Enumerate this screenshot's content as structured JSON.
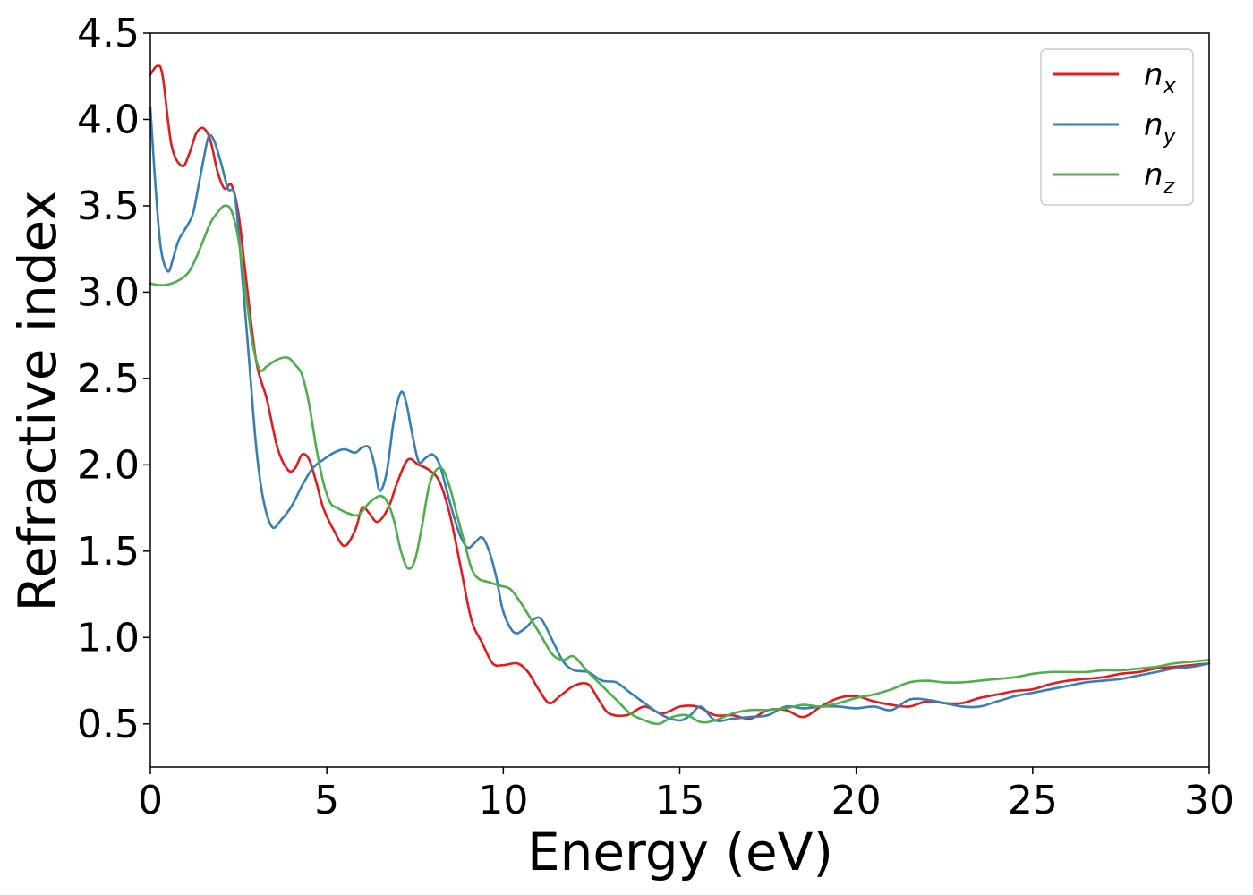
{
  "chart_data": {
    "type": "line",
    "title": "",
    "xlabel": "Energy (eV)",
    "ylabel": "Refractive index",
    "xlim": [
      0,
      30
    ],
    "ylim": [
      0.25,
      4.5
    ],
    "xticks": [
      0,
      5,
      10,
      15,
      20,
      25,
      30
    ],
    "yticks": [
      0.5,
      1.0,
      1.5,
      2.0,
      2.5,
      3.0,
      3.5,
      4.0,
      4.5
    ],
    "xtick_labels": [
      "0",
      "5",
      "10",
      "15",
      "20",
      "25",
      "30"
    ],
    "ytick_labels": [
      "0.5",
      "1.0",
      "1.5",
      "2.0",
      "2.5",
      "3.0",
      "3.5",
      "4.0",
      "4.5"
    ],
    "grid": false,
    "legend_position": "top-right",
    "series": [
      {
        "name": "n",
        "subscript": "x",
        "color": "#e41a1c",
        "x": [
          0,
          0.2,
          0.35,
          0.6,
          0.9,
          1.1,
          1.3,
          1.5,
          1.7,
          1.9,
          2.1,
          2.3,
          2.5,
          2.7,
          3.0,
          3.3,
          3.6,
          3.9,
          4.1,
          4.3,
          4.5,
          4.7,
          4.9,
          5.2,
          5.5,
          5.8,
          6.0,
          6.2,
          6.4,
          6.6,
          6.8,
          7.0,
          7.3,
          7.6,
          7.9,
          8.2,
          8.5,
          8.8,
          9.1,
          9.4,
          9.7,
          10.0,
          10.4,
          10.7,
          11.0,
          11.3,
          11.6,
          12.0,
          12.4,
          12.7,
          13.0,
          13.5,
          14.0,
          14.5,
          15.0,
          15.5,
          16.0,
          16.5,
          17.0,
          17.5,
          18.0,
          18.5,
          19.0,
          19.5,
          20.0,
          20.5,
          21.0,
          21.5,
          22.0,
          22.5,
          23.0,
          23.5,
          24.0,
          24.5,
          25.0,
          25.5,
          26.0,
          26.5,
          27.0,
          27.5,
          28.0,
          28.5,
          29.0,
          29.5,
          30.0
        ],
        "y": [
          4.26,
          4.31,
          4.25,
          3.85,
          3.73,
          3.8,
          3.92,
          3.95,
          3.88,
          3.7,
          3.6,
          3.62,
          3.45,
          3.1,
          2.6,
          2.38,
          2.1,
          1.97,
          1.98,
          2.06,
          2.03,
          1.9,
          1.75,
          1.62,
          1.53,
          1.62,
          1.75,
          1.72,
          1.67,
          1.7,
          1.78,
          1.9,
          2.03,
          2.0,
          1.97,
          1.9,
          1.7,
          1.4,
          1.1,
          0.97,
          0.85,
          0.84,
          0.85,
          0.8,
          0.7,
          0.62,
          0.66,
          0.72,
          0.73,
          0.64,
          0.56,
          0.55,
          0.6,
          0.56,
          0.6,
          0.6,
          0.55,
          0.55,
          0.53,
          0.58,
          0.58,
          0.54,
          0.6,
          0.65,
          0.66,
          0.63,
          0.61,
          0.6,
          0.63,
          0.62,
          0.62,
          0.65,
          0.67,
          0.69,
          0.7,
          0.73,
          0.75,
          0.76,
          0.77,
          0.79,
          0.8,
          0.82,
          0.83,
          0.84,
          0.85
        ]
      },
      {
        "name": "n",
        "subscript": "y",
        "color": "#377eb8",
        "x": [
          0,
          0.15,
          0.3,
          0.5,
          0.65,
          0.8,
          1.0,
          1.2,
          1.35,
          1.5,
          1.65,
          1.8,
          2.0,
          2.2,
          2.4,
          2.6,
          2.8,
          3.0,
          3.2,
          3.45,
          3.7,
          4.0,
          4.3,
          4.6,
          4.9,
          5.2,
          5.5,
          5.8,
          6.0,
          6.2,
          6.35,
          6.5,
          6.7,
          6.9,
          7.1,
          7.25,
          7.4,
          7.6,
          7.8,
          8.0,
          8.2,
          8.4,
          8.6,
          8.8,
          9.0,
          9.2,
          9.4,
          9.6,
          9.8,
          10.0,
          10.3,
          10.6,
          10.9,
          11.1,
          11.4,
          11.7,
          12.0,
          12.4,
          12.8,
          13.2,
          13.6,
          14.0,
          14.5,
          15.0,
          15.3,
          15.6,
          16.0,
          16.5,
          17.0,
          17.5,
          18.0,
          18.5,
          19.0,
          19.5,
          20.0,
          20.5,
          21.0,
          21.5,
          22.0,
          22.5,
          23.0,
          23.5,
          24.0,
          24.5,
          25.0,
          25.5,
          26.0,
          26.5,
          27.0,
          27.5,
          28.0,
          28.5,
          29.0,
          29.5,
          30.0
        ],
        "y": [
          4.07,
          3.6,
          3.25,
          3.12,
          3.2,
          3.3,
          3.37,
          3.45,
          3.6,
          3.76,
          3.9,
          3.88,
          3.75,
          3.6,
          3.55,
          3.1,
          2.6,
          2.1,
          1.8,
          1.64,
          1.68,
          1.76,
          1.88,
          1.98,
          2.03,
          2.07,
          2.09,
          2.07,
          2.1,
          2.1,
          2.0,
          1.85,
          1.96,
          2.26,
          2.42,
          2.36,
          2.2,
          2.02,
          2.04,
          2.06,
          2.0,
          1.85,
          1.7,
          1.58,
          1.52,
          1.55,
          1.58,
          1.5,
          1.35,
          1.15,
          1.03,
          1.05,
          1.11,
          1.1,
          0.98,
          0.86,
          0.81,
          0.8,
          0.75,
          0.74,
          0.68,
          0.62,
          0.55,
          0.52,
          0.55,
          0.6,
          0.52,
          0.53,
          0.54,
          0.55,
          0.6,
          0.59,
          0.6,
          0.6,
          0.59,
          0.6,
          0.58,
          0.64,
          0.64,
          0.62,
          0.6,
          0.6,
          0.63,
          0.66,
          0.68,
          0.7,
          0.72,
          0.74,
          0.75,
          0.76,
          0.78,
          0.8,
          0.82,
          0.83,
          0.85
        ]
      },
      {
        "name": "n",
        "subscript": "z",
        "color": "#4daf4a",
        "x": [
          0,
          0.3,
          0.6,
          0.9,
          1.1,
          1.3,
          1.5,
          1.7,
          1.9,
          2.1,
          2.3,
          2.5,
          2.7,
          2.9,
          3.1,
          3.3,
          3.6,
          3.9,
          4.1,
          4.3,
          4.5,
          4.7,
          4.9,
          5.1,
          5.3,
          5.6,
          5.9,
          6.2,
          6.5,
          6.7,
          6.9,
          7.1,
          7.3,
          7.5,
          7.7,
          7.9,
          8.1,
          8.3,
          8.5,
          8.7,
          8.9,
          9.1,
          9.3,
          9.6,
          9.9,
          10.2,
          10.5,
          10.8,
          11.1,
          11.4,
          11.7,
          12.0,
          12.4,
          12.8,
          13.2,
          13.6,
          14.0,
          14.4,
          14.8,
          15.2,
          15.6,
          16.0,
          16.5,
          17.0,
          17.5,
          18.0,
          18.5,
          19.0,
          19.5,
          20.0,
          20.5,
          21.0,
          21.5,
          22.0,
          22.5,
          23.0,
          23.5,
          24.0,
          24.5,
          25.0,
          25.5,
          26.0,
          26.5,
          27.0,
          27.5,
          28.0,
          28.5,
          29.0,
          29.5,
          30.0
        ],
        "y": [
          3.05,
          3.04,
          3.05,
          3.08,
          3.12,
          3.2,
          3.3,
          3.4,
          3.46,
          3.5,
          3.47,
          3.3,
          3.0,
          2.7,
          2.55,
          2.57,
          2.61,
          2.62,
          2.58,
          2.52,
          2.35,
          2.1,
          1.9,
          1.78,
          1.75,
          1.72,
          1.71,
          1.78,
          1.82,
          1.79,
          1.68,
          1.5,
          1.4,
          1.45,
          1.65,
          1.88,
          1.97,
          1.97,
          1.86,
          1.7,
          1.55,
          1.4,
          1.34,
          1.32,
          1.3,
          1.28,
          1.2,
          1.1,
          1.0,
          0.9,
          0.87,
          0.89,
          0.8,
          0.72,
          0.64,
          0.56,
          0.52,
          0.5,
          0.54,
          0.55,
          0.51,
          0.52,
          0.56,
          0.58,
          0.58,
          0.59,
          0.61,
          0.6,
          0.62,
          0.65,
          0.67,
          0.7,
          0.74,
          0.75,
          0.74,
          0.74,
          0.75,
          0.76,
          0.77,
          0.79,
          0.8,
          0.8,
          0.8,
          0.81,
          0.81,
          0.82,
          0.83,
          0.85,
          0.86,
          0.87
        ]
      }
    ]
  }
}
